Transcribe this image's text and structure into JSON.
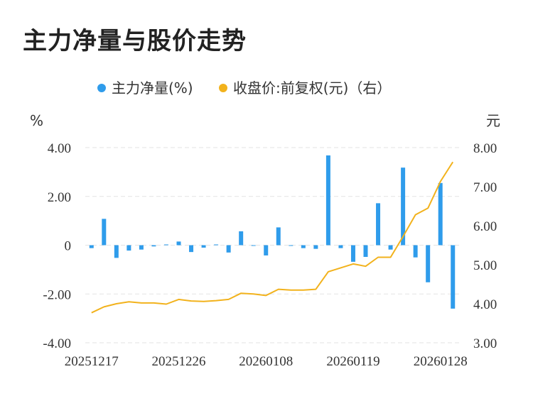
{
  "title": "主力净量与股价走势",
  "colors": {
    "bar": "#2f9ceb",
    "line": "#f2b21c",
    "grid": "#e3e3e3",
    "text": "#333333"
  },
  "chart_data": {
    "type": "bar+line",
    "legend": {
      "placement": "top-center",
      "bar_label": "主力净量(%)",
      "line_label": "收盘价:前复权(元)（右）"
    },
    "left_axis": {
      "unit": "%",
      "ylim": [
        -4,
        4
      ],
      "ticks": [
        "4.00",
        "2.00",
        "0",
        "-2.00",
        "-4.00"
      ],
      "tick_values": [
        4,
        2,
        0,
        -2,
        -4
      ]
    },
    "right_axis": {
      "unit": "元",
      "ylim": [
        3,
        8
      ],
      "ticks": [
        "8.00",
        "7.00",
        "6.00",
        "5.00",
        "4.00",
        "3.00"
      ],
      "tick_values": [
        8,
        7,
        6,
        5,
        4,
        3
      ]
    },
    "x_tick_labels": [
      "20251217",
      "20251226",
      "20260108",
      "20260119",
      "20260128"
    ],
    "x_tick_indices": [
      0,
      7,
      14,
      21,
      28
    ],
    "grid": "horizontal-dashed",
    "series": [
      {
        "name": "主力净量(%)",
        "type": "bar",
        "values": [
          -0.12,
          1.08,
          -0.52,
          -0.22,
          -0.18,
          -0.05,
          0.03,
          0.15,
          -0.28,
          -0.1,
          0.03,
          -0.3,
          0.57,
          -0.02,
          -0.42,
          0.73,
          -0.02,
          -0.12,
          -0.15,
          3.68,
          -0.12,
          -0.68,
          -0.48,
          1.72,
          -0.18,
          3.18,
          -0.5,
          -1.52,
          2.55,
          -2.6
        ]
      },
      {
        "name": "收盘价:前复权(元)（右）",
        "type": "line",
        "values": [
          3.77,
          3.92,
          4.0,
          4.05,
          4.02,
          4.02,
          3.99,
          4.11,
          4.07,
          4.06,
          4.08,
          4.11,
          4.27,
          4.25,
          4.21,
          4.37,
          4.35,
          4.35,
          4.37,
          4.82,
          4.92,
          5.02,
          4.96,
          5.19,
          5.19,
          5.72,
          6.28,
          6.45,
          7.13,
          7.63
        ]
      }
    ]
  }
}
